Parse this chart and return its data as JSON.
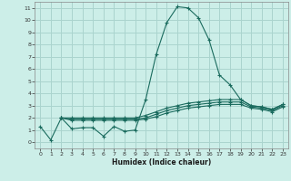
{
  "xlabel": "Humidex (Indice chaleur)",
  "background_color": "#cceee8",
  "grid_color": "#aad4ce",
  "line_color": "#1a6b5e",
  "xlim": [
    -0.5,
    23.5
  ],
  "ylim": [
    -0.5,
    11.5
  ],
  "xticks": [
    0,
    1,
    2,
    3,
    4,
    5,
    6,
    7,
    8,
    9,
    10,
    11,
    12,
    13,
    14,
    15,
    16,
    17,
    18,
    19,
    20,
    21,
    22,
    23
  ],
  "yticks": [
    0,
    1,
    2,
    3,
    4,
    5,
    6,
    7,
    8,
    9,
    10,
    11
  ],
  "series": [
    {
      "x": [
        0,
        1,
        2,
        3,
        4,
        5,
        6,
        7,
        8,
        9,
        10,
        11,
        12,
        13,
        14,
        15,
        16,
        17,
        18,
        19,
        20,
        21,
        22,
        23
      ],
      "y": [
        1.3,
        0.2,
        2.0,
        1.1,
        1.2,
        1.2,
        0.5,
        1.3,
        0.9,
        1.0,
        3.5,
        7.2,
        9.8,
        11.1,
        11.0,
        10.2,
        8.4,
        5.5,
        4.7,
        3.5,
        3.0,
        2.9,
        2.7,
        3.1
      ]
    },
    {
      "x": [
        2,
        3,
        4,
        5,
        6,
        7,
        8,
        9,
        10,
        11,
        12,
        13,
        14,
        15,
        16,
        17,
        18,
        19,
        20,
        21,
        22,
        23
      ],
      "y": [
        2.0,
        2.0,
        2.0,
        2.0,
        2.0,
        2.0,
        2.0,
        2.0,
        2.2,
        2.5,
        2.8,
        3.0,
        3.2,
        3.3,
        3.4,
        3.5,
        3.5,
        3.5,
        3.0,
        2.9,
        2.7,
        3.1
      ]
    },
    {
      "x": [
        2,
        3,
        4,
        5,
        6,
        7,
        8,
        9,
        10,
        11,
        12,
        13,
        14,
        15,
        16,
        17,
        18,
        19,
        20,
        21,
        22,
        23
      ],
      "y": [
        2.0,
        1.9,
        1.9,
        1.9,
        1.9,
        1.9,
        1.9,
        1.9,
        2.0,
        2.3,
        2.6,
        2.8,
        3.0,
        3.1,
        3.2,
        3.3,
        3.3,
        3.3,
        2.9,
        2.8,
        2.6,
        3.0
      ]
    },
    {
      "x": [
        2,
        3,
        4,
        5,
        6,
        7,
        8,
        9,
        10,
        11,
        12,
        13,
        14,
        15,
        16,
        17,
        18,
        19,
        20,
        21,
        22,
        23
      ],
      "y": [
        2.0,
        1.8,
        1.8,
        1.8,
        1.8,
        1.8,
        1.8,
        1.8,
        1.9,
        2.1,
        2.4,
        2.6,
        2.8,
        2.9,
        3.0,
        3.1,
        3.1,
        3.1,
        2.8,
        2.7,
        2.5,
        2.9
      ]
    }
  ]
}
